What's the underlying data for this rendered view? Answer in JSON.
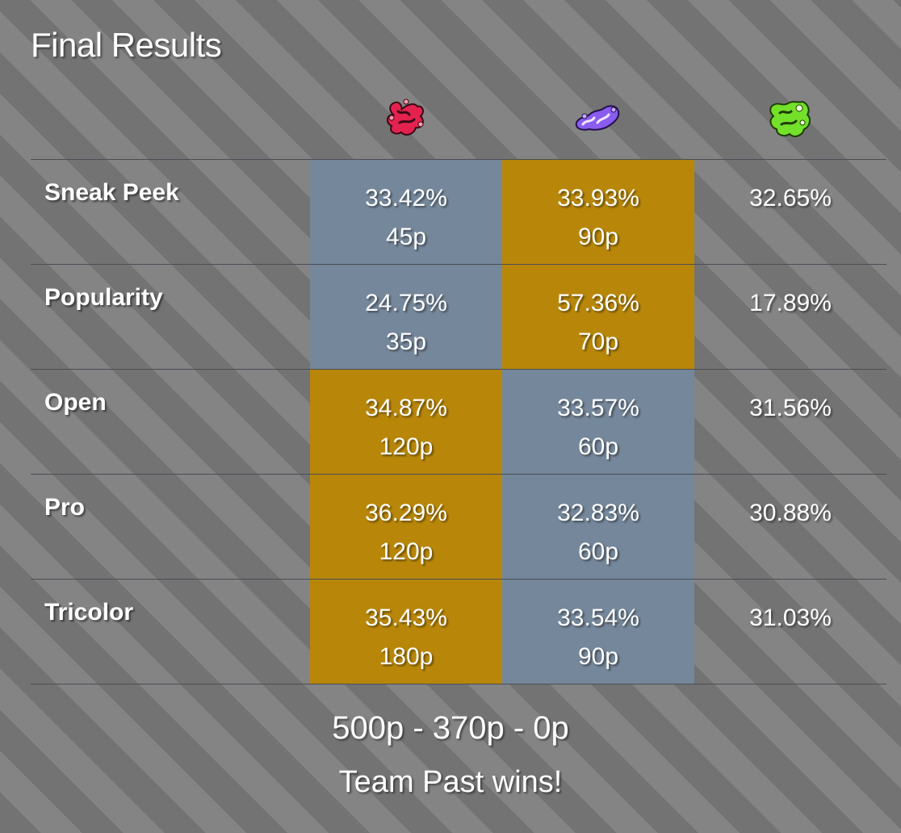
{
  "title": "Final Results",
  "teams": [
    {
      "icon": "red-team-splat-icon",
      "color": "#e3224f"
    },
    {
      "icon": "purple-team-splat-icon",
      "color": "#8a5cf0"
    },
    {
      "icon": "green-team-splat-icon",
      "color": "#73e02a"
    }
  ],
  "colors": {
    "winner_cell": "#b8870a",
    "loser_cell": "#75879a"
  },
  "rows": [
    {
      "label": "Sneak Peek",
      "cells": [
        {
          "pct": "33.42%",
          "pts": "45p",
          "status": "lose"
        },
        {
          "pct": "33.93%",
          "pts": "90p",
          "status": "win"
        },
        {
          "pct": "32.65%",
          "pts": "",
          "status": "plain"
        }
      ]
    },
    {
      "label": "Popularity",
      "cells": [
        {
          "pct": "24.75%",
          "pts": "35p",
          "status": "lose"
        },
        {
          "pct": "57.36%",
          "pts": "70p",
          "status": "win"
        },
        {
          "pct": "17.89%",
          "pts": "",
          "status": "plain"
        }
      ]
    },
    {
      "label": "Open",
      "cells": [
        {
          "pct": "34.87%",
          "pts": "120p",
          "status": "win"
        },
        {
          "pct": "33.57%",
          "pts": "60p",
          "status": "lose"
        },
        {
          "pct": "31.56%",
          "pts": "",
          "status": "plain"
        }
      ]
    },
    {
      "label": "Pro",
      "cells": [
        {
          "pct": "36.29%",
          "pts": "120p",
          "status": "win"
        },
        {
          "pct": "32.83%",
          "pts": "60p",
          "status": "lose"
        },
        {
          "pct": "30.88%",
          "pts": "",
          "status": "plain"
        }
      ]
    },
    {
      "label": "Tricolor",
      "cells": [
        {
          "pct": "35.43%",
          "pts": "180p",
          "status": "win"
        },
        {
          "pct": "33.54%",
          "pts": "90p",
          "status": "lose"
        },
        {
          "pct": "31.03%",
          "pts": "",
          "status": "plain"
        }
      ]
    }
  ],
  "score": "500p - 370p - 0p",
  "result": "Team Past wins!"
}
